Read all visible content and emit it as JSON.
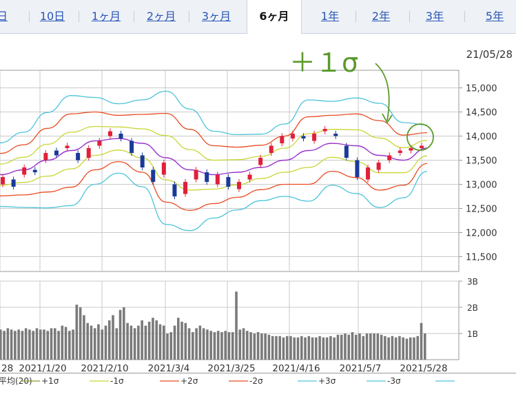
{
  "tabs": [
    {
      "label": "日",
      "active": false
    },
    {
      "label": "10日",
      "active": false
    },
    {
      "label": "1ヶ月",
      "active": false
    },
    {
      "label": "2ヶ月",
      "active": false
    },
    {
      "label": "3ヶ月",
      "active": false
    },
    {
      "label": "6ヶ月",
      "active": true
    },
    {
      "label": "1年",
      "active": false
    },
    {
      "label": "2年",
      "active": false
    },
    {
      "label": "3年",
      "active": false
    },
    {
      "label": "5年",
      "active": false
    }
  ],
  "date_label": "21/05/28",
  "annotation": "＋１σ",
  "legend": [
    "平均(20)",
    "+1σ",
    "-1σ",
    "+2σ",
    "-2σ",
    "+3σ",
    "-3σ"
  ],
  "colors": {
    "up": "#e0203a",
    "down": "#1a3a9a",
    "ma": "#9933cc",
    "sigma1": "#c8d632",
    "sigma2": "#e84a20",
    "sigma3": "#4cc3d9",
    "volume": "#7a7a7a",
    "annotation": "#5a9a2a",
    "grid": "#c9c9c9"
  },
  "chart_data": [
    {
      "type": "line",
      "subtype": "candlestick with bollinger bands",
      "y_ticks": [
        "15,000",
        "14,500",
        "14,000",
        "13,500",
        "13,000",
        "12,500",
        "12,000",
        "11,500"
      ],
      "ylim": [
        11250,
        15250
      ],
      "x_ticks": [
        "28",
        "2021/1/20",
        "2021/2/10",
        "2021/3/4",
        "2021/3/25",
        "2021/4/16",
        "2021/5/7",
        "2021/5/28"
      ],
      "grid": true,
      "series_names": [
        "平均(20)",
        "+1σ",
        "-1σ",
        "+2σ",
        "-2σ",
        "+3σ",
        "-3σ"
      ],
      "ma20": [
        13200,
        13300,
        13500,
        13700,
        13900,
        13950,
        13850,
        13550,
        13300,
        13200,
        13250,
        13350,
        13500,
        13700,
        13850,
        13800,
        13600,
        13500,
        13750
      ],
      "band_sd": [
        220,
        260,
        330,
        380,
        300,
        240,
        300,
        460,
        420,
        300,
        260,
        230,
        250,
        350,
        290,
        330,
        360,
        260,
        160
      ],
      "candles": [
        [
          13000,
          13150
        ],
        [
          13100,
          12950
        ],
        [
          13200,
          13350
        ],
        [
          13300,
          13250
        ],
        [
          13500,
          13650
        ],
        [
          13700,
          13600
        ],
        [
          13750,
          13800
        ],
        [
          13650,
          13500
        ],
        [
          13550,
          13750
        ],
        [
          13800,
          13900
        ],
        [
          14000,
          14100
        ],
        [
          14050,
          13950
        ],
        [
          13900,
          13650
        ],
        [
          13600,
          13350
        ],
        [
          13300,
          13050
        ],
        [
          13200,
          13450
        ],
        [
          13000,
          12750
        ],
        [
          12800,
          13050
        ],
        [
          13100,
          13300
        ],
        [
          13250,
          13050
        ],
        [
          13000,
          13200
        ],
        [
          13150,
          12950
        ],
        [
          12900,
          13050
        ],
        [
          13100,
          13200
        ],
        [
          13400,
          13550
        ],
        [
          13650,
          13800
        ],
        [
          13850,
          14000
        ],
        [
          13950,
          14050
        ],
        [
          14000,
          13950
        ],
        [
          13900,
          14050
        ],
        [
          14100,
          14150
        ],
        [
          14050,
          14000
        ],
        [
          13800,
          13550
        ],
        [
          13500,
          13150
        ],
        [
          13100,
          13350
        ],
        [
          13300,
          13450
        ],
        [
          13500,
          13600
        ],
        [
          13650,
          13700
        ],
        [
          13700,
          13750
        ],
        [
          13750,
          13800
        ]
      ]
    },
    {
      "type": "bar",
      "name": "volume",
      "y_ticks": [
        "3B",
        "2B",
        "1B"
      ],
      "ylim": [
        0,
        3
      ],
      "values": [
        1.15,
        1.1,
        1.2,
        1.15,
        1.1,
        1.15,
        1.1,
        1.2,
        1.15,
        1.1,
        1.2,
        1.15,
        1.15,
        1.1,
        1.2,
        1.2,
        1.1,
        1.3,
        1.25,
        1.1,
        1.15,
        2.1,
        2.0,
        1.7,
        1.4,
        1.3,
        1.2,
        1.35,
        1.15,
        1.3,
        1.5,
        1.7,
        1.2,
        1.9,
        2.0,
        1.4,
        1.3,
        1.2,
        1.3,
        1.5,
        1.3,
        1.45,
        1.6,
        1.5,
        1.35,
        1.3,
        1.0,
        1.05,
        1.3,
        1.6,
        1.45,
        1.4,
        1.2,
        1.05,
        1.2,
        1.3,
        1.2,
        1.15,
        1.1,
        1.05,
        1.1,
        1.05,
        1.1,
        1.05,
        1.05,
        2.6,
        1.15,
        1.2,
        1.1,
        1.05,
        1.0,
        1.05,
        1.0,
        1.0,
        0.95,
        0.9,
        0.9,
        0.9,
        0.85,
        0.9,
        0.9,
        0.85,
        0.85,
        0.9,
        0.85,
        0.9,
        0.85,
        0.85,
        0.9,
        0.85,
        0.85,
        0.9,
        0.85,
        0.95,
        0.95,
        1.0,
        0.95,
        1.05,
        0.95,
        1.0,
        0.9,
        1.0,
        1.0,
        1.0,
        1.0,
        0.95,
        0.9,
        0.85,
        0.9,
        0.85,
        0.9,
        0.85,
        0.8,
        0.85,
        0.85,
        0.9,
        1.4,
        1.0
      ]
    }
  ]
}
